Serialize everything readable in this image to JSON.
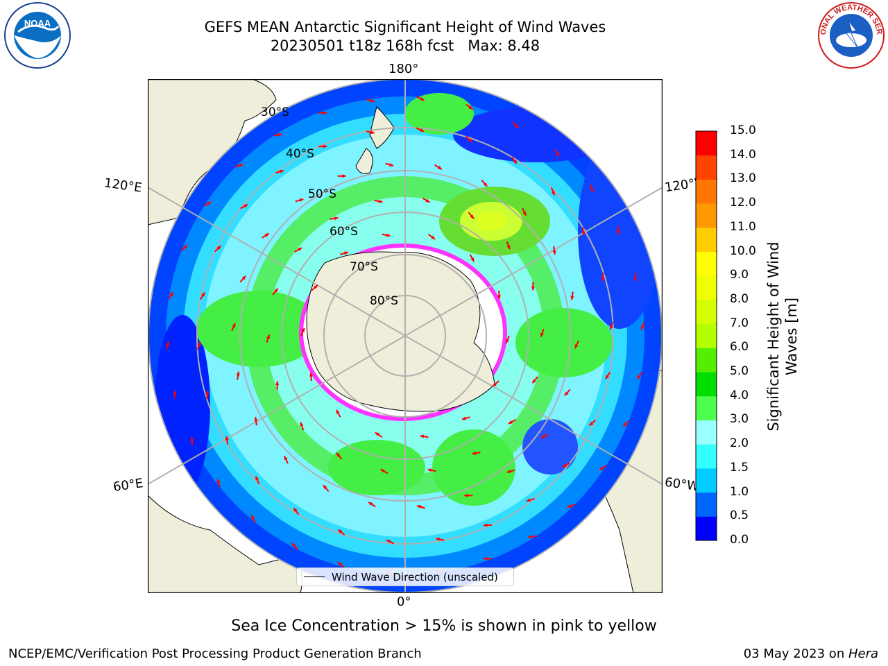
{
  "title": {
    "line1": "GEFS MEAN Antarctic Significant Height of Wind Waves",
    "line2": "20230501 t18z 168h fcst   Max: 8.48"
  },
  "map": {
    "projection": "south-polar-stereographic",
    "lon_labels": {
      "top": "180°",
      "bottom": "0°",
      "left_upper": "120°E",
      "right_upper": "120°W",
      "left_lower": "60°E",
      "right_lower": "60°W"
    },
    "lat_labels": [
      "30°S",
      "40°S",
      "50°S",
      "60°S",
      "70°S",
      "80°S"
    ],
    "legend": "Wind Wave Direction (unscaled)",
    "ocean_color_low": "#0000ff",
    "land_color": "#efeedb",
    "arrow_color": "#ff0000"
  },
  "colorbar": {
    "label": "Significant Height of Wind Waves [m]",
    "ticks": [
      "0.0",
      "0.5",
      "1.0",
      "1.5",
      "2.0",
      "3.0",
      "4.0",
      "5.0",
      "6.0",
      "7.0",
      "8.0",
      "9.0",
      "10.0",
      "11.0",
      "12.0",
      "13.0",
      "14.0",
      "15.0"
    ],
    "colors": [
      "#0000ff",
      "#0066ff",
      "#00ccff",
      "#33ffff",
      "#99ffff",
      "#4dff4d",
      "#00dd00",
      "#55ee00",
      "#b3ff00",
      "#d4ff00",
      "#eeff00",
      "#ffff00",
      "#ffcc00",
      "#ff9900",
      "#ff7700",
      "#ff4400",
      "#ff0000"
    ]
  },
  "logos": {
    "left": "NOAA",
    "right": "NATIONAL WEATHER SERVICE"
  },
  "caption": "Sea Ice Concentration > 15% is shown in pink to yellow",
  "footer": {
    "left": "NCEP/EMC/Verification Post Processing Product Generation Branch",
    "right_date": "03 May 2023 on ",
    "right_machine": "Hera"
  }
}
